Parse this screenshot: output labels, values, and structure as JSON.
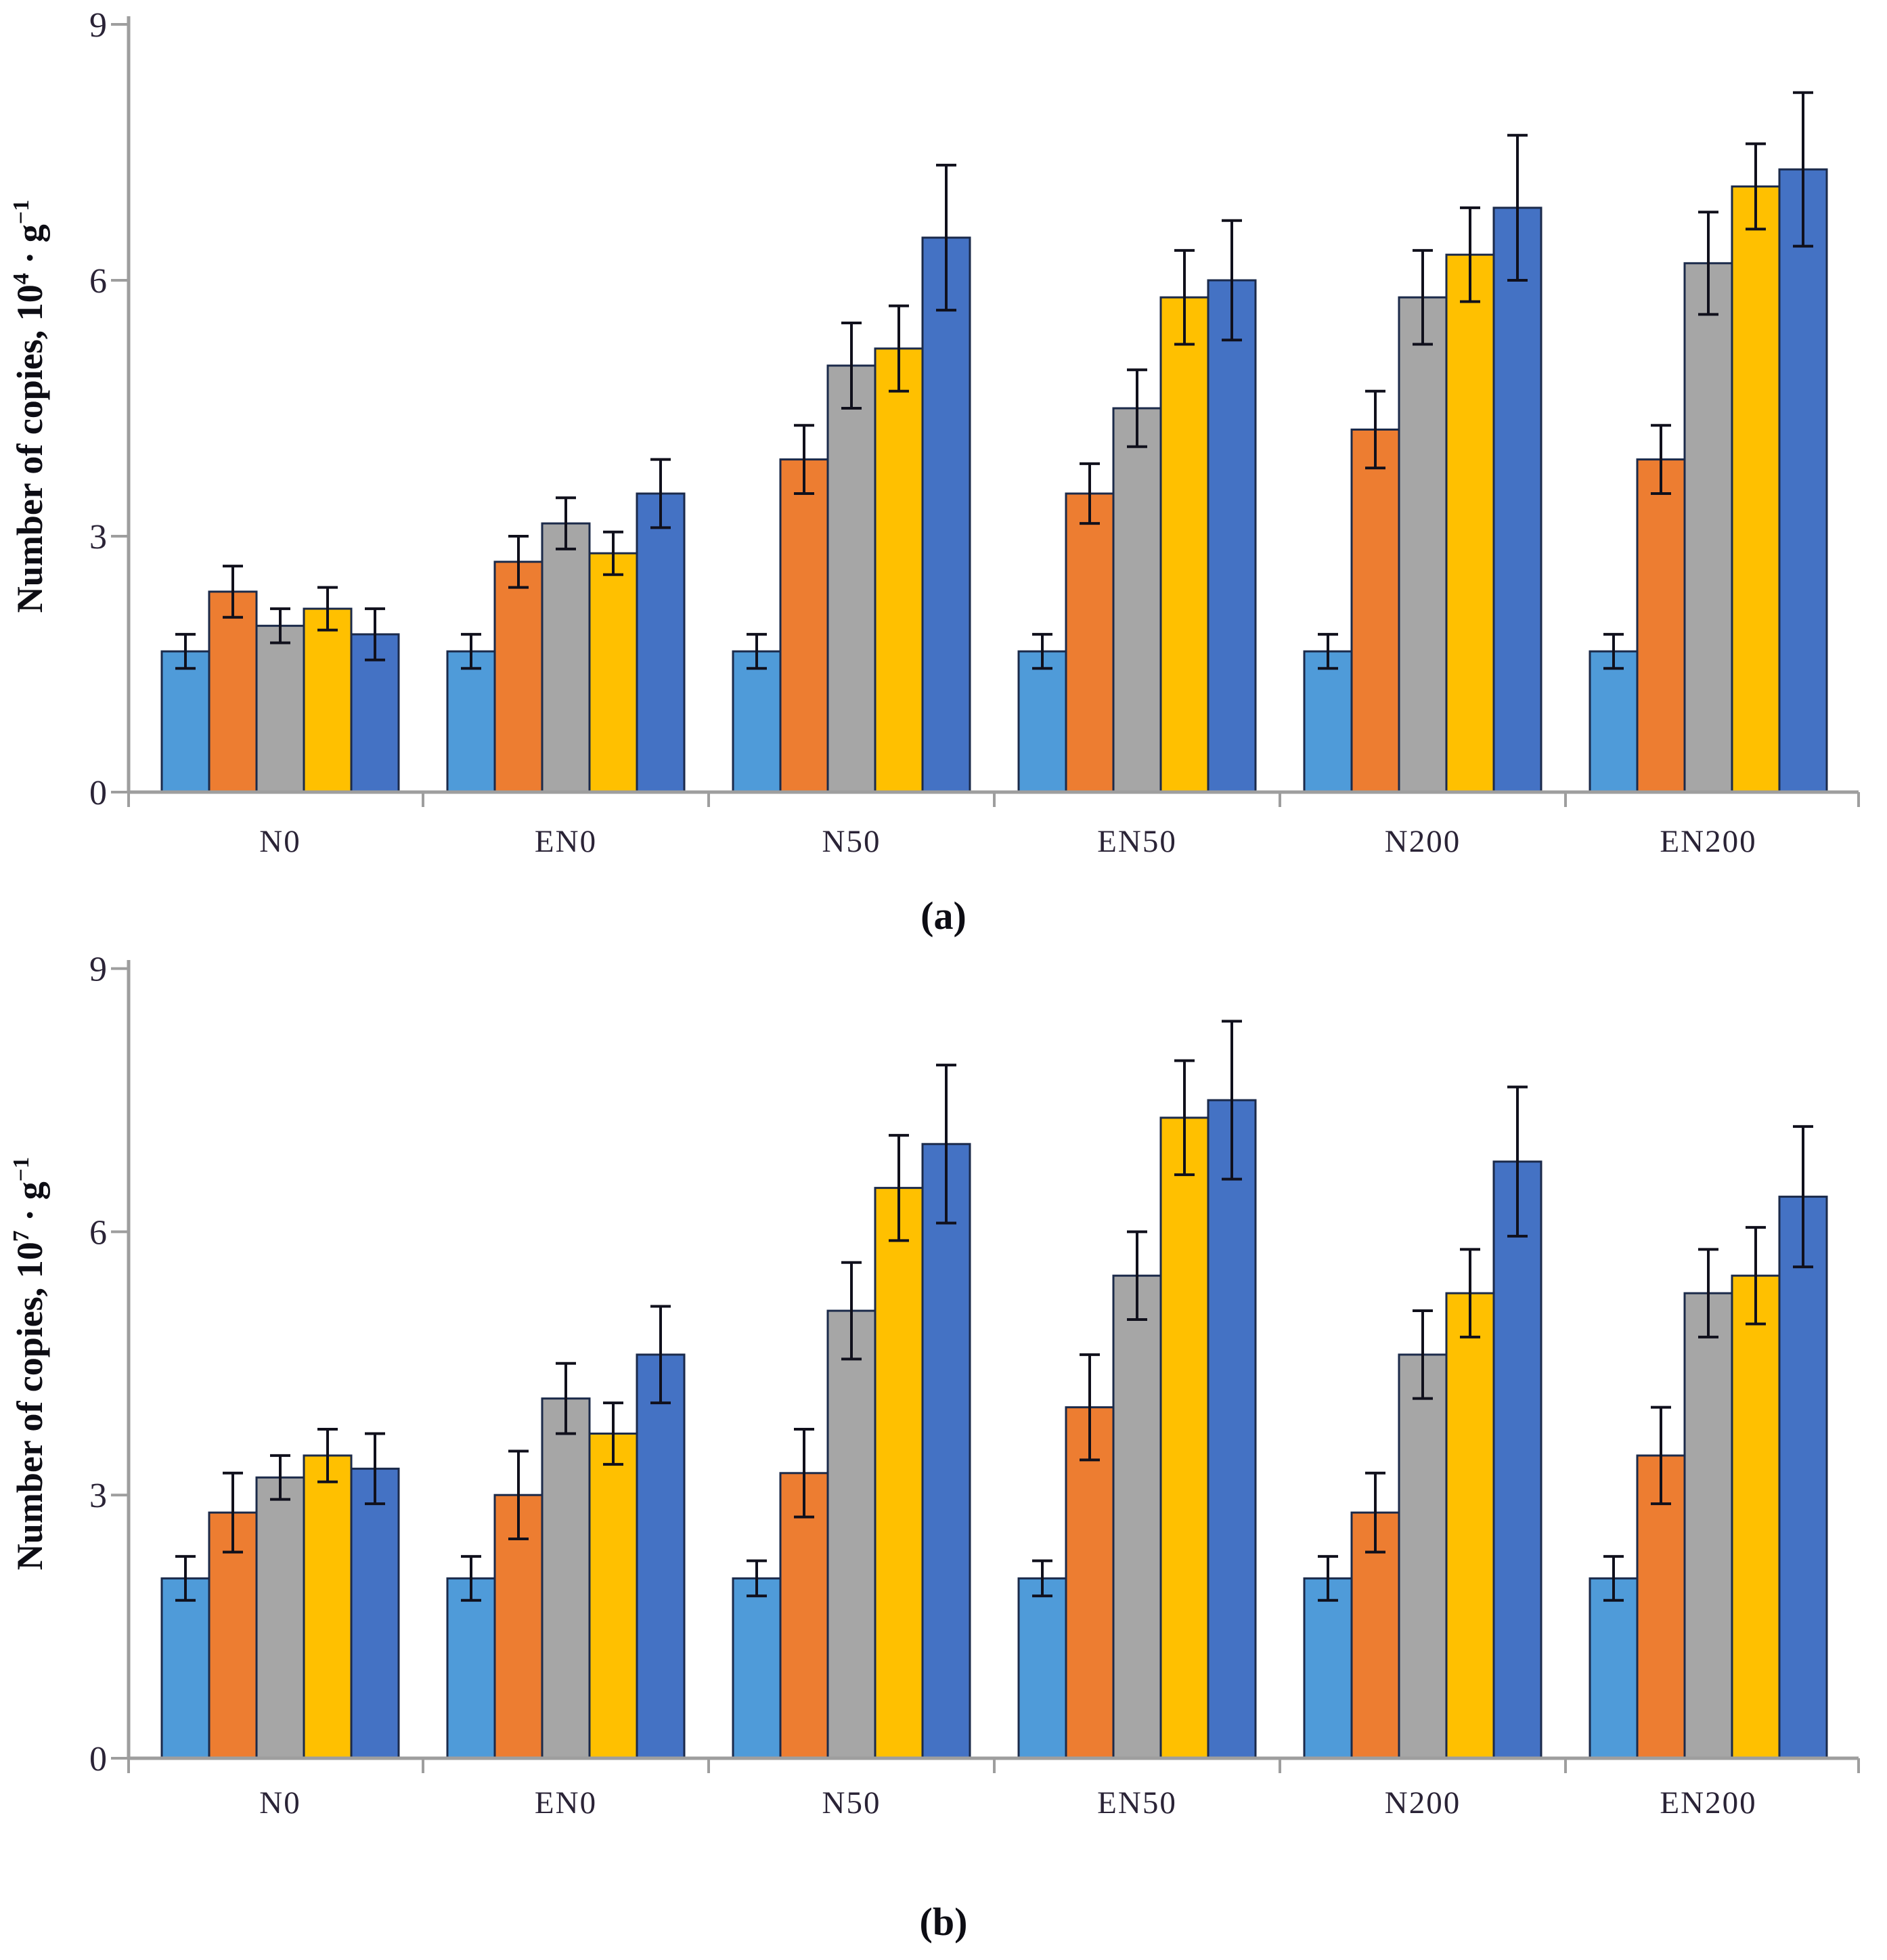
{
  "chart_data": [
    {
      "type": "bar",
      "panel": "a",
      "caption": "(a)",
      "ylabel": {
        "base": "Number of copies, 10",
        "exponent": "4",
        "unit": " · g",
        "unit_exponent": "−1"
      },
      "y_axis": {
        "min": 0,
        "max": 9,
        "ticks": [
          0,
          3,
          6,
          9
        ]
      },
      "grid": false,
      "legend_position": "none",
      "categories": [
        "N0",
        "EN0",
        "N50",
        "EN50",
        "N200",
        "EN200"
      ],
      "series": [
        {
          "name": "light-blue",
          "color": "#4F9BD9",
          "values": [
            1.65,
            1.65,
            1.65,
            1.65,
            1.65,
            1.65
          ],
          "errors": [
            0.2,
            0.2,
            0.2,
            0.2,
            0.2,
            0.2
          ]
        },
        {
          "name": "orange",
          "color": "#ED7D31",
          "values": [
            2.35,
            2.7,
            3.9,
            3.5,
            4.25,
            3.9
          ],
          "errors": [
            0.3,
            0.3,
            0.4,
            0.35,
            0.45,
            0.4
          ]
        },
        {
          "name": "gray",
          "color": "#A6A6A6",
          "values": [
            1.95,
            3.15,
            5.0,
            4.5,
            5.8,
            6.2
          ],
          "errors": [
            0.2,
            0.3,
            0.5,
            0.45,
            0.55,
            0.6
          ]
        },
        {
          "name": "yellow",
          "color": "#FFC000",
          "values": [
            2.15,
            2.8,
            5.2,
            5.8,
            6.3,
            7.1
          ],
          "errors": [
            0.25,
            0.25,
            0.5,
            0.55,
            0.55,
            0.5
          ]
        },
        {
          "name": "blue",
          "color": "#4472C4",
          "values": [
            1.85,
            3.5,
            6.5,
            6.0,
            6.85,
            7.3
          ],
          "errors": [
            0.3,
            0.4,
            0.85,
            0.7,
            0.85,
            0.9
          ]
        }
      ]
    },
    {
      "type": "bar",
      "panel": "b",
      "caption": "(b)",
      "ylabel": {
        "base": "Number of copies, 10",
        "exponent": "7",
        "unit": " · g",
        "unit_exponent": "−1"
      },
      "y_axis": {
        "min": 0,
        "max": 9,
        "ticks": [
          0,
          3,
          6,
          9
        ]
      },
      "grid": false,
      "legend_position": "none",
      "categories": [
        "N0",
        "EN0",
        "N50",
        "EN50",
        "N200",
        "EN200"
      ],
      "series": [
        {
          "name": "light-blue",
          "color": "#4F9BD9",
          "values": [
            2.05,
            2.05,
            2.05,
            2.05,
            2.05,
            2.05
          ],
          "errors": [
            0.25,
            0.25,
            0.2,
            0.2,
            0.25,
            0.25
          ]
        },
        {
          "name": "orange",
          "color": "#ED7D31",
          "values": [
            2.8,
            3.0,
            3.25,
            4.0,
            2.8,
            3.45
          ],
          "errors": [
            0.45,
            0.5,
            0.5,
            0.6,
            0.45,
            0.55
          ]
        },
        {
          "name": "gray",
          "color": "#A6A6A6",
          "values": [
            3.2,
            4.1,
            5.1,
            5.5,
            4.6,
            5.3
          ],
          "errors": [
            0.25,
            0.4,
            0.55,
            0.5,
            0.5,
            0.5
          ]
        },
        {
          "name": "yellow",
          "color": "#FFC000",
          "values": [
            3.45,
            3.7,
            6.5,
            7.3,
            5.3,
            5.5
          ],
          "errors": [
            0.3,
            0.35,
            0.6,
            0.65,
            0.5,
            0.55
          ]
        },
        {
          "name": "blue",
          "color": "#4472C4",
          "values": [
            3.3,
            4.6,
            7.0,
            7.5,
            6.8,
            6.4
          ],
          "errors": [
            0.4,
            0.55,
            0.9,
            0.9,
            0.85,
            0.8
          ]
        }
      ]
    }
  ],
  "style": {
    "axis_color": "#9e9e9e",
    "bar_outline_color": "#1B2A4A",
    "error_bar_color": "#10101c"
  }
}
